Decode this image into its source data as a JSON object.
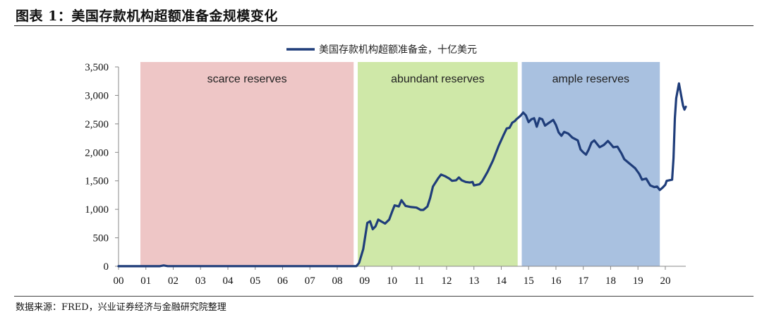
{
  "figure": {
    "title": "图表 1：美国存款机构超额准备金规模变化",
    "source": "数据来源：FRED，兴业证券经济与金融研究院整理"
  },
  "chart_data": {
    "type": "line",
    "legend": "美国存款机构超额准备金，十亿美元",
    "legend_position": "top-center",
    "grid": false,
    "xlim": [
      2000,
      2020.75
    ],
    "ylim": [
      0,
      3500
    ],
    "ytick_values": [
      0,
      500,
      1000,
      1500,
      2000,
      2500,
      3000,
      3500
    ],
    "ytick_labels": [
      "0",
      "500",
      "1,000",
      "1,500",
      "2,000",
      "2,500",
      "3,000",
      "3,500"
    ],
    "xtick_values": [
      2000,
      2001,
      2002,
      2003,
      2004,
      2005,
      2006,
      2007,
      2008,
      2009,
      2010,
      2011,
      2012,
      2013,
      2014,
      2015,
      2016,
      2017,
      2018,
      2019,
      2020
    ],
    "xtick_labels": [
      "00",
      "01",
      "02",
      "03",
      "04",
      "05",
      "06",
      "07",
      "08",
      "09",
      "10",
      "11",
      "12",
      "13",
      "14",
      "15",
      "16",
      "17",
      "18",
      "19",
      "20"
    ],
    "bands": [
      {
        "label": "scarce reserves",
        "x0": 2000.8,
        "x1": 2008.6,
        "color": "#eec6c6"
      },
      {
        "label": "abundant reserves",
        "x0": 2008.75,
        "x1": 2014.6,
        "color": "#cfe8a8"
      },
      {
        "label": "ample reserves",
        "x0": 2014.75,
        "x1": 2019.8,
        "color": "#a9c1e0"
      }
    ],
    "series": [
      {
        "name": "美国存款机构超额准备金，十亿美元",
        "color": "#1f3d7a",
        "points": [
          [
            2000.0,
            1
          ],
          [
            2001.5,
            1
          ],
          [
            2001.65,
            15
          ],
          [
            2001.8,
            2
          ],
          [
            2008.7,
            2
          ],
          [
            2008.8,
            60
          ],
          [
            2008.95,
            300
          ],
          [
            2009.1,
            760
          ],
          [
            2009.2,
            790
          ],
          [
            2009.3,
            650
          ],
          [
            2009.4,
            700
          ],
          [
            2009.5,
            820
          ],
          [
            2009.6,
            790
          ],
          [
            2009.75,
            750
          ],
          [
            2009.9,
            820
          ],
          [
            2010.0,
            950
          ],
          [
            2010.1,
            1070
          ],
          [
            2010.25,
            1050
          ],
          [
            2010.35,
            1160
          ],
          [
            2010.5,
            1060
          ],
          [
            2010.7,
            1040
          ],
          [
            2010.9,
            1030
          ],
          [
            2011.05,
            990
          ],
          [
            2011.15,
            990
          ],
          [
            2011.3,
            1050
          ],
          [
            2011.4,
            1200
          ],
          [
            2011.5,
            1400
          ],
          [
            2011.7,
            1550
          ],
          [
            2011.8,
            1610
          ],
          [
            2011.95,
            1580
          ],
          [
            2012.1,
            1540
          ],
          [
            2012.2,
            1500
          ],
          [
            2012.35,
            1510
          ],
          [
            2012.45,
            1560
          ],
          [
            2012.55,
            1510
          ],
          [
            2012.7,
            1480
          ],
          [
            2012.85,
            1470
          ],
          [
            2012.95,
            1480
          ],
          [
            2013.0,
            1420
          ],
          [
            2013.2,
            1440
          ],
          [
            2013.3,
            1490
          ],
          [
            2013.5,
            1660
          ],
          [
            2013.7,
            1860
          ],
          [
            2013.9,
            2110
          ],
          [
            2014.1,
            2320
          ],
          [
            2014.2,
            2420
          ],
          [
            2014.3,
            2430
          ],
          [
            2014.4,
            2520
          ],
          [
            2014.5,
            2550
          ],
          [
            2014.55,
            2580
          ],
          [
            2014.6,
            2600
          ],
          [
            2014.7,
            2640
          ],
          [
            2014.8,
            2700
          ],
          [
            2014.9,
            2650
          ],
          [
            2015.0,
            2530
          ],
          [
            2015.1,
            2580
          ],
          [
            2015.2,
            2600
          ],
          [
            2015.3,
            2450
          ],
          [
            2015.4,
            2600
          ],
          [
            2015.5,
            2580
          ],
          [
            2015.6,
            2470
          ],
          [
            2015.75,
            2520
          ],
          [
            2015.9,
            2570
          ],
          [
            2016.0,
            2480
          ],
          [
            2016.1,
            2350
          ],
          [
            2016.2,
            2290
          ],
          [
            2016.3,
            2360
          ],
          [
            2016.45,
            2330
          ],
          [
            2016.6,
            2260
          ],
          [
            2016.8,
            2210
          ],
          [
            2016.9,
            2050
          ],
          [
            2017.0,
            2000
          ],
          [
            2017.1,
            1960
          ],
          [
            2017.2,
            2050
          ],
          [
            2017.3,
            2170
          ],
          [
            2017.4,
            2210
          ],
          [
            2017.5,
            2150
          ],
          [
            2017.6,
            2090
          ],
          [
            2017.75,
            2130
          ],
          [
            2017.9,
            2200
          ],
          [
            2018.0,
            2150
          ],
          [
            2018.1,
            2090
          ],
          [
            2018.25,
            2100
          ],
          [
            2018.4,
            1980
          ],
          [
            2018.5,
            1880
          ],
          [
            2018.7,
            1800
          ],
          [
            2018.9,
            1720
          ],
          [
            2019.05,
            1620
          ],
          [
            2019.15,
            1520
          ],
          [
            2019.3,
            1540
          ],
          [
            2019.45,
            1420
          ],
          [
            2019.6,
            1390
          ],
          [
            2019.7,
            1400
          ],
          [
            2019.8,
            1340
          ],
          [
            2019.9,
            1380
          ],
          [
            2020.0,
            1430
          ],
          [
            2020.05,
            1500
          ],
          [
            2020.25,
            1520
          ],
          [
            2020.3,
            1900
          ],
          [
            2020.35,
            2600
          ],
          [
            2020.4,
            2950
          ],
          [
            2020.5,
            3210
          ],
          [
            2020.58,
            3000
          ],
          [
            2020.65,
            2820
          ],
          [
            2020.7,
            2750
          ],
          [
            2020.75,
            2800
          ]
        ]
      }
    ]
  }
}
